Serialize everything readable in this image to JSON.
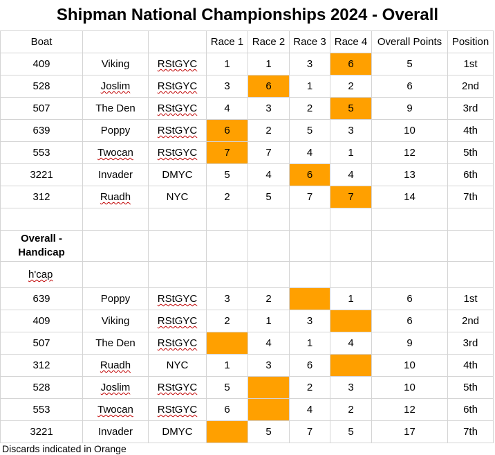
{
  "title": "Shipman National Championships 2024 - Overall",
  "headers": [
    "Boat",
    "",
    "",
    "Race 1",
    "Race 2",
    "Race 3",
    "Race 4",
    "Overall Points",
    "Position"
  ],
  "overall_rows": [
    {
      "boat": "409",
      "name": "Viking",
      "club": "RStGYC",
      "r1": "1",
      "r2": "1",
      "r3": "3",
      "r4": "6",
      "pts": "5",
      "pos": "1st",
      "disc": 4
    },
    {
      "boat": "528",
      "name": "Joslim",
      "club": "RStGYC",
      "r1": "3",
      "r2": "6",
      "r3": "1",
      "r4": "2",
      "pts": "6",
      "pos": "2nd",
      "disc": 2
    },
    {
      "boat": "507",
      "name": "The Den",
      "club": "RStGYC",
      "r1": "4",
      "r2": "3",
      "r3": "2",
      "r4": "5",
      "pts": "9",
      "pos": "3rd",
      "disc": 4
    },
    {
      "boat": "639",
      "name": "Poppy",
      "club": "RStGYC",
      "r1": "6",
      "r2": "2",
      "r3": "5",
      "r4": "3",
      "pts": "10",
      "pos": "4th",
      "disc": 1
    },
    {
      "boat": "553",
      "name": "Twocan",
      "club": "RStGYC",
      "r1": "7",
      "r2": "7",
      "r3": "4",
      "r4": "1",
      "pts": "12",
      "pos": "5th",
      "disc": 1
    },
    {
      "boat": "3221",
      "name": "Invader",
      "club": "DMYC",
      "r1": "5",
      "r2": "4",
      "r3": "6",
      "r4": "4",
      "pts": "13",
      "pos": "6th",
      "disc": 3
    },
    {
      "boat": "312",
      "name": "Ruadh",
      "club": "NYC",
      "r1": "2",
      "r2": "5",
      "r3": "7",
      "r4": "7",
      "pts": "14",
      "pos": "7th",
      "disc": 4
    }
  ],
  "handicap_title": "Overall - Handicap",
  "handicap_label": "h'cap",
  "handicap_rows": [
    {
      "boat": "639",
      "name": "Poppy",
      "club": "RStGYC",
      "r1": "3",
      "r2": "2",
      "r3": "",
      "r4": "1",
      "pts": "6",
      "pos": "1st",
      "disc": 3
    },
    {
      "boat": "409",
      "name": "Viking",
      "club": "RStGYC",
      "r1": "2",
      "r2": "1",
      "r3": "3",
      "r4": "",
      "pts": "6",
      "pos": "2nd",
      "disc": 4
    },
    {
      "boat": "507",
      "name": "The Den",
      "club": "RStGYC",
      "r1": "",
      "r2": "4",
      "r3": "1",
      "r4": "4",
      "pts": "9",
      "pos": "3rd",
      "disc": 1
    },
    {
      "boat": "312",
      "name": "Ruadh",
      "club": "NYC",
      "r1": "1",
      "r2": "3",
      "r3": "6",
      "r4": "",
      "pts": "10",
      "pos": "4th",
      "disc": 4
    },
    {
      "boat": "528",
      "name": "Joslim",
      "club": "RStGYC",
      "r1": "5",
      "r2": "",
      "r3": "2",
      "r4": "3",
      "pts": "10",
      "pos": "5th",
      "disc": 2
    },
    {
      "boat": "553",
      "name": "Twocan",
      "club": "RStGYC",
      "r1": "6",
      "r2": "",
      "r3": "4",
      "r4": "2",
      "pts": "12",
      "pos": "6th",
      "disc": 2
    },
    {
      "boat": "3221",
      "name": "Invader",
      "club": "DMYC",
      "r1": "",
      "r2": "5",
      "r3": "7",
      "r4": "5",
      "pts": "17",
      "pos": "7th",
      "disc": 1
    }
  ],
  "footer": "Discards indicated in Orange",
  "colors": {
    "discard": "#ffa000",
    "grid": "#d4d4d4",
    "squiggle": "#c00000"
  }
}
